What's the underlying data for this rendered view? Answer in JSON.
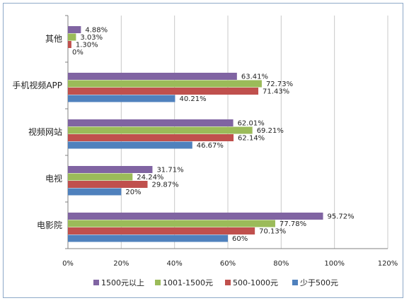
{
  "chart_data": {
    "type": "bar",
    "orientation": "horizontal",
    "categories": [
      "其他",
      "手机视频APP",
      "视频网站",
      "电视",
      "电影院"
    ],
    "series": [
      {
        "name": "1500元以上",
        "color": "#8064a2",
        "values": [
          4.88,
          63.41,
          62.01,
          31.71,
          95.72
        ],
        "labels": [
          "4.88%",
          "63.41%",
          "62.01%",
          "31.71%",
          "95.72%"
        ]
      },
      {
        "name": "1001-1500元",
        "color": "#9bbb59",
        "values": [
          3.03,
          72.73,
          69.21,
          24.24,
          77.78
        ],
        "labels": [
          "3.03%",
          "72.73%",
          "69.21%",
          "24.24%",
          "77.78%"
        ]
      },
      {
        "name": "500-1000元",
        "color": "#c0504d",
        "values": [
          1.3,
          71.43,
          62.14,
          29.87,
          70.13
        ],
        "labels": [
          "1.30%",
          "71.43%",
          "62.14%",
          "29.87%",
          "70.13%"
        ]
      },
      {
        "name": "少于500元",
        "color": "#4f81bd",
        "values": [
          0,
          40.21,
          46.67,
          20,
          60
        ],
        "labels": [
          "0%",
          "40.21%",
          "46.67%",
          "20%",
          "60%"
        ]
      }
    ],
    "xticks": [
      "0%",
      "20%",
      "40%",
      "60%",
      "80%",
      "100%",
      "120%"
    ],
    "xlim": [
      0,
      120
    ],
    "grid": true,
    "legend_position": "bottom",
    "title": "",
    "xlabel": "",
    "ylabel": ""
  }
}
